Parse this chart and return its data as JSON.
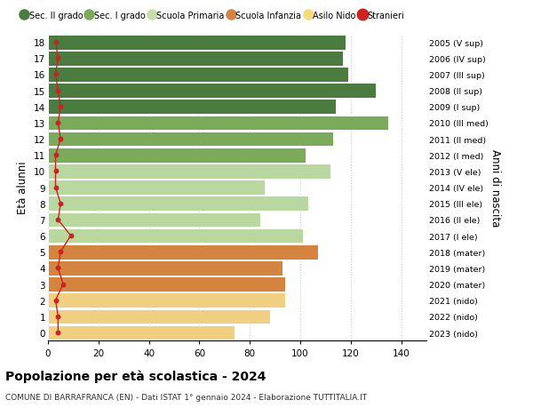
{
  "ages": [
    18,
    17,
    16,
    15,
    14,
    13,
    12,
    11,
    10,
    9,
    8,
    7,
    6,
    5,
    4,
    3,
    2,
    1,
    0
  ],
  "years": [
    "2005 (V sup)",
    "2006 (IV sup)",
    "2007 (III sup)",
    "2008 (II sup)",
    "2009 (I sup)",
    "2010 (III med)",
    "2011 (II med)",
    "2012 (I med)",
    "2013 (V ele)",
    "2014 (IV ele)",
    "2015 (III ele)",
    "2016 (II ele)",
    "2017 (I ele)",
    "2018 (mater)",
    "2019 (mater)",
    "2020 (mater)",
    "2021 (nido)",
    "2022 (nido)",
    "2023 (nido)"
  ],
  "values": [
    118,
    117,
    119,
    130,
    114,
    135,
    113,
    102,
    112,
    86,
    103,
    84,
    101,
    107,
    93,
    94,
    94,
    88,
    74
  ],
  "stranieri": [
    3,
    4,
    3,
    4,
    5,
    4,
    5,
    3,
    3,
    3,
    5,
    4,
    9,
    5,
    4,
    6,
    3,
    4,
    4
  ],
  "bar_colors": [
    "#4a7c3f",
    "#4a7c3f",
    "#4a7c3f",
    "#4a7c3f",
    "#4a7c3f",
    "#7aab5a",
    "#7aab5a",
    "#7aab5a",
    "#b8d8a0",
    "#b8d8a0",
    "#b8d8a0",
    "#b8d8a0",
    "#b8d8a0",
    "#d4843e",
    "#d4843e",
    "#d4843e",
    "#f0d080",
    "#f0d080",
    "#f0d080"
  ],
  "legend_labels": [
    "Sec. II grado",
    "Sec. I grado",
    "Scuola Primaria",
    "Scuola Infanzia",
    "Asilo Nido",
    "Stranieri"
  ],
  "legend_colors": [
    "#4a7c3f",
    "#7aab5a",
    "#c5dfa8",
    "#d4843e",
    "#f5d97a",
    "#cc2222"
  ],
  "title": "Popolazione per età scolastica - 2024",
  "subtitle": "COMUNE DI BARRAFRANCA (EN) - Dati ISTAT 1° gennaio 2024 - Elaborazione TUTTITALIA.IT",
  "ylabel_left": "Età alunni",
  "ylabel_right": "Anni di nascita",
  "xlim": [
    0,
    150
  ],
  "xticks": [
    0,
    20,
    40,
    60,
    80,
    100,
    120,
    140
  ],
  "stranieri_color": "#cc2222",
  "bg_color": "#ffffff",
  "grid_color": "#cccccc"
}
